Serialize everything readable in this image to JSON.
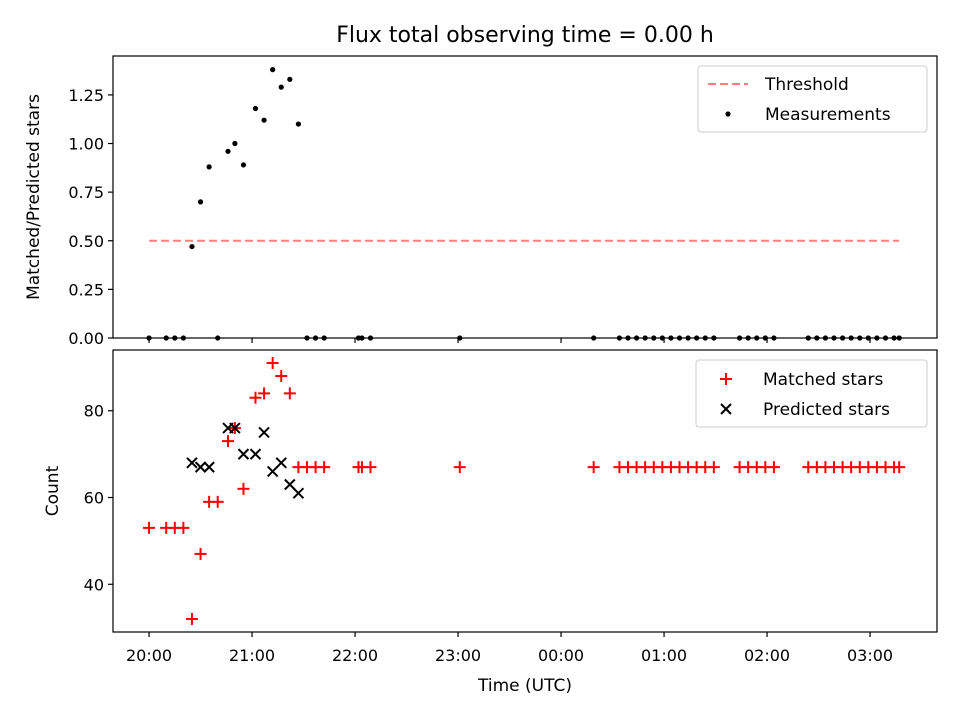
{
  "title": "Flux total observing time = 0.00 h",
  "colors": {
    "threshold": "#ff7f7f",
    "measurements": "#000000",
    "matched": "#ff0000",
    "predicted": "#000000"
  },
  "top": {
    "ylabel": "Matched/Predicted stars",
    "yticks": [
      "0.00",
      "0.25",
      "0.50",
      "0.75",
      "1.00",
      "1.25"
    ],
    "legend": {
      "threshold": "Threshold",
      "measurements": "Measurements"
    }
  },
  "bottom": {
    "xlabel": "Time (UTC)",
    "ylabel": "Count",
    "yticks": [
      "40",
      "60",
      "80"
    ],
    "xticks": [
      "20:00",
      "21:00",
      "22:00",
      "23:00",
      "00:00",
      "01:00",
      "02:00",
      "03:00"
    ],
    "legend": {
      "matched": "Matched stars",
      "predicted": "Predicted stars"
    }
  },
  "chart_data": [
    {
      "type": "scatter",
      "title": "Flux total observing time = 0.00 h",
      "xlabel": "",
      "ylabel": "Matched/Predicted stars",
      "xlim": [
        "19:39",
        "03:39"
      ],
      "ylim": [
        0,
        1.45
      ],
      "yticks": [
        0,
        0.25,
        0.5,
        0.75,
        1.0,
        1.25
      ],
      "legend_position": "top-right",
      "grid": false,
      "threshold": {
        "name": "Threshold",
        "value": 0.5,
        "x_start": "20:00",
        "x_end": "03:17",
        "style": "dashed"
      },
      "series": [
        {
          "name": "Measurements",
          "points": [
            [
              "20:00",
              0
            ],
            [
              "20:10",
              0
            ],
            [
              "20:15",
              0
            ],
            [
              "20:20",
              0
            ],
            [
              "20:25",
              0.47
            ],
            [
              "20:30",
              0.7
            ],
            [
              "20:35",
              0.88
            ],
            [
              "20:40",
              0
            ],
            [
              "20:46",
              0.96
            ],
            [
              "20:50",
              1.0
            ],
            [
              "20:55",
              0.89
            ],
            [
              "21:02",
              1.18
            ],
            [
              "21:07",
              1.12
            ],
            [
              "21:12",
              1.38
            ],
            [
              "21:17",
              1.29
            ],
            [
              "21:22",
              1.33
            ],
            [
              "21:27",
              1.1
            ],
            [
              "21:32",
              0
            ],
            [
              "21:37",
              0
            ],
            [
              "21:42",
              0
            ],
            [
              "22:02",
              0
            ],
            [
              "22:04",
              0
            ],
            [
              "22:09",
              0
            ],
            [
              "23:01",
              0
            ],
            [
              "00:19",
              0
            ],
            [
              "00:34",
              0
            ],
            [
              "00:39",
              0
            ],
            [
              "00:44",
              0
            ],
            [
              "00:49",
              0
            ],
            [
              "00:54",
              0
            ],
            [
              "00:59",
              0
            ],
            [
              "01:04",
              0
            ],
            [
              "01:09",
              0
            ],
            [
              "01:14",
              0
            ],
            [
              "01:19",
              0
            ],
            [
              "01:24",
              0
            ],
            [
              "01:29",
              0
            ],
            [
              "01:44",
              0
            ],
            [
              "01:49",
              0
            ],
            [
              "01:54",
              0
            ],
            [
              "01:59",
              0
            ],
            [
              "02:04",
              0
            ],
            [
              "02:24",
              0
            ],
            [
              "02:29",
              0
            ],
            [
              "02:34",
              0
            ],
            [
              "02:39",
              0
            ],
            [
              "02:44",
              0
            ],
            [
              "02:49",
              0
            ],
            [
              "02:54",
              0
            ],
            [
              "02:59",
              0
            ],
            [
              "03:04",
              0
            ],
            [
              "03:09",
              0
            ],
            [
              "03:14",
              0
            ],
            [
              "03:17",
              0
            ]
          ]
        }
      ]
    },
    {
      "type": "scatter",
      "title": "",
      "xlabel": "Time (UTC)",
      "ylabel": "Count",
      "xlim": [
        "19:39",
        "03:39"
      ],
      "ylim": [
        29,
        94
      ],
      "yticks": [
        40,
        60,
        80
      ],
      "xticks": [
        "20:00",
        "21:00",
        "22:00",
        "23:00",
        "00:00",
        "01:00",
        "02:00",
        "03:00"
      ],
      "legend_position": "top-right",
      "grid": false,
      "series": [
        {
          "name": "Matched stars",
          "marker": "+",
          "points": [
            [
              "20:00",
              53
            ],
            [
              "20:10",
              53
            ],
            [
              "20:15",
              53
            ],
            [
              "20:20",
              53
            ],
            [
              "20:25",
              32
            ],
            [
              "20:30",
              47
            ],
            [
              "20:35",
              59
            ],
            [
              "20:40",
              59
            ],
            [
              "20:46",
              73
            ],
            [
              "20:50",
              76
            ],
            [
              "20:55",
              62
            ],
            [
              "21:02",
              83
            ],
            [
              "21:07",
              84
            ],
            [
              "21:12",
              91
            ],
            [
              "21:17",
              88
            ],
            [
              "21:22",
              84
            ],
            [
              "21:27",
              67
            ],
            [
              "21:32",
              67
            ],
            [
              "21:37",
              67
            ],
            [
              "21:42",
              67
            ],
            [
              "22:02",
              67
            ],
            [
              "22:04",
              67
            ],
            [
              "22:09",
              67
            ],
            [
              "23:01",
              67
            ],
            [
              "00:19",
              67
            ],
            [
              "00:34",
              67
            ],
            [
              "00:39",
              67
            ],
            [
              "00:44",
              67
            ],
            [
              "00:49",
              67
            ],
            [
              "00:54",
              67
            ],
            [
              "00:59",
              67
            ],
            [
              "01:04",
              67
            ],
            [
              "01:09",
              67
            ],
            [
              "01:14",
              67
            ],
            [
              "01:19",
              67
            ],
            [
              "01:24",
              67
            ],
            [
              "01:29",
              67
            ],
            [
              "01:44",
              67
            ],
            [
              "01:49",
              67
            ],
            [
              "01:54",
              67
            ],
            [
              "01:59",
              67
            ],
            [
              "02:04",
              67
            ],
            [
              "02:24",
              67
            ],
            [
              "02:29",
              67
            ],
            [
              "02:34",
              67
            ],
            [
              "02:39",
              67
            ],
            [
              "02:44",
              67
            ],
            [
              "02:49",
              67
            ],
            [
              "02:54",
              67
            ],
            [
              "02:59",
              67
            ],
            [
              "03:04",
              67
            ],
            [
              "03:09",
              67
            ],
            [
              "03:14",
              67
            ],
            [
              "03:17",
              67
            ]
          ]
        },
        {
          "name": "Predicted stars",
          "marker": "x",
          "points": [
            [
              "20:25",
              68
            ],
            [
              "20:30",
              67
            ],
            [
              "20:35",
              67
            ],
            [
              "20:46",
              76
            ],
            [
              "20:50",
              76
            ],
            [
              "20:55",
              70
            ],
            [
              "21:02",
              70
            ],
            [
              "21:07",
              75
            ],
            [
              "21:12",
              66
            ],
            [
              "21:17",
              68
            ],
            [
              "21:22",
              63
            ],
            [
              "21:27",
              61
            ]
          ]
        }
      ]
    }
  ]
}
